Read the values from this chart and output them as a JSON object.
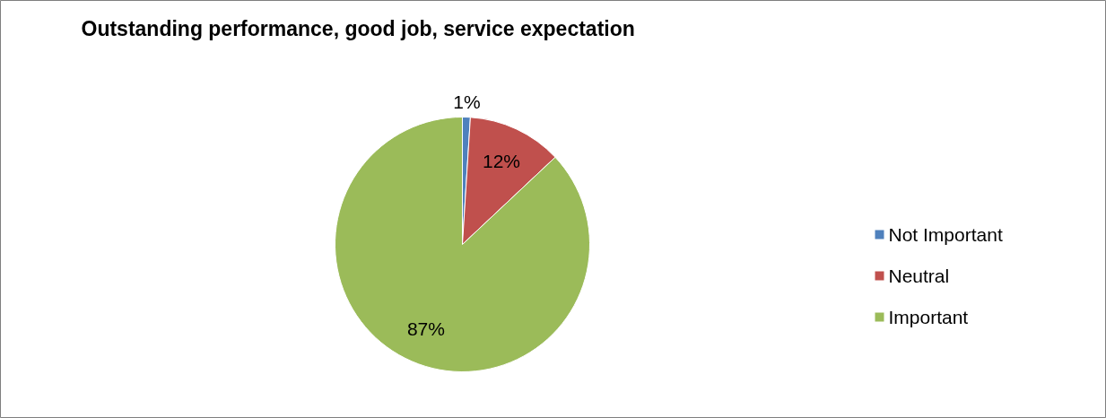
{
  "chart_data": {
    "type": "pie",
    "title": "Outstanding performance, good job, service expectation",
    "categories": [
      "Not Important",
      "Neutral",
      "Important"
    ],
    "values": [
      1,
      12,
      87
    ],
    "colors": [
      "#4f81bd",
      "#c0504d",
      "#9bbb59"
    ],
    "value_labels": [
      "1%",
      "12%",
      "87%"
    ],
    "legend": "right"
  }
}
